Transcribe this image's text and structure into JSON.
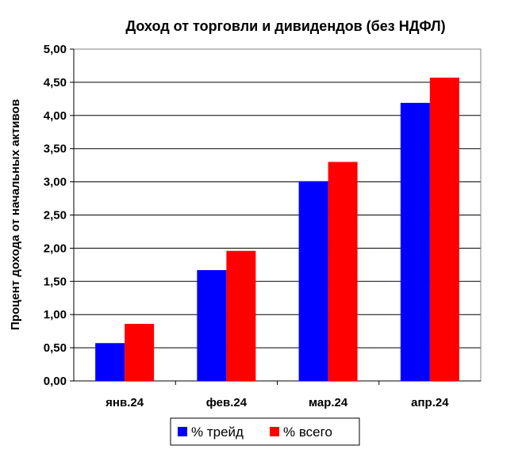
{
  "chart_data": {
    "type": "bar",
    "title": "Доход от торговли и дивидендов (без НДФЛ)",
    "xlabel": "",
    "ylabel": "Процент дохода от начальных активов",
    "categories": [
      "янв.24",
      "фев.24",
      "мар.24",
      "апр.24"
    ],
    "series": [
      {
        "name": "% трейд",
        "color": "#0000ff",
        "values": [
          0.57,
          1.67,
          3.01,
          4.19
        ]
      },
      {
        "name": "% всего",
        "color": "#ff0000",
        "values": [
          0.86,
          1.96,
          3.3,
          4.57
        ]
      }
    ],
    "ylim": [
      0,
      5
    ],
    "yticks": [
      "0,00",
      "0,50",
      "1,00",
      "1,50",
      "2,00",
      "2,50",
      "3,00",
      "3,50",
      "4,00",
      "4,50",
      "5,00"
    ],
    "grid": true,
    "legend_position": "bottom"
  }
}
